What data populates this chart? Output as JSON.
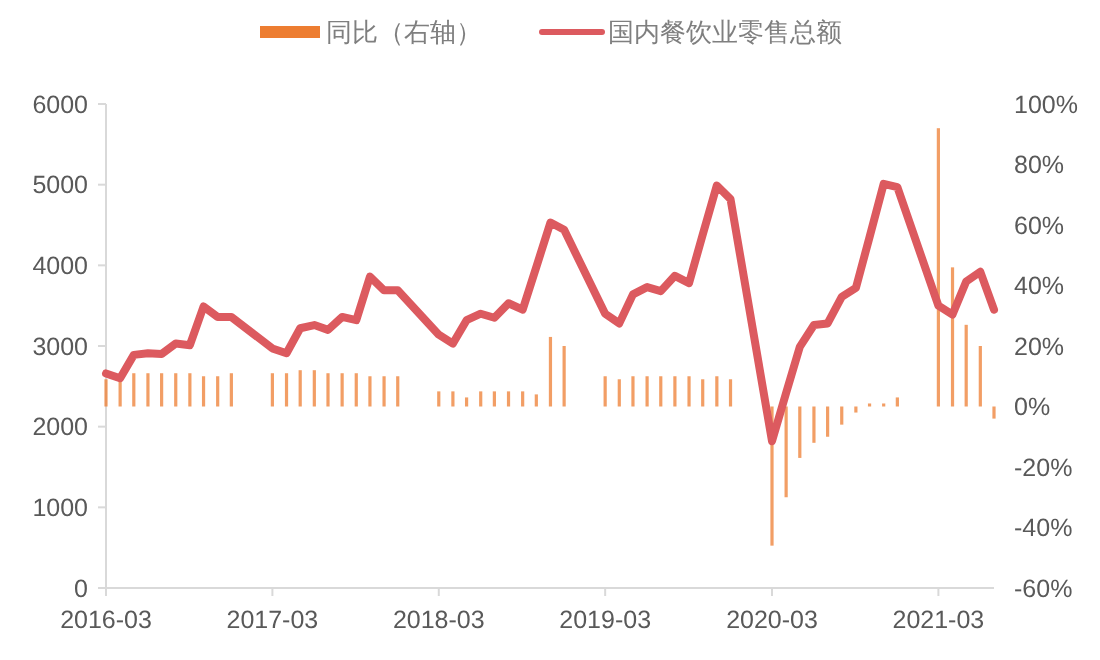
{
  "chart_data": {
    "type": "bar",
    "x": [
      "2016-03",
      "2016-04",
      "2016-05",
      "2016-06",
      "2016-07",
      "2016-08",
      "2016-09",
      "2016-10",
      "2016-11",
      "2016-12",
      "2017-03",
      "2017-04",
      "2017-05",
      "2017-06",
      "2017-07",
      "2017-08",
      "2017-09",
      "2017-10",
      "2017-11",
      "2017-12",
      "2018-03",
      "2018-04",
      "2018-05",
      "2018-06",
      "2018-07",
      "2018-08",
      "2018-09",
      "2018-10",
      "2018-11",
      "2018-12",
      "2019-03",
      "2019-04",
      "2019-05",
      "2019-06",
      "2019-07",
      "2019-08",
      "2019-09",
      "2019-10",
      "2019-11",
      "2019-12",
      "2020-03",
      "2020-04",
      "2020-05",
      "2020-06",
      "2020-07",
      "2020-08",
      "2020-09",
      "2020-10",
      "2020-11",
      "2020-12",
      "2021-03",
      "2021-04",
      "2021-05",
      "2021-06",
      "2021-07"
    ],
    "series": [
      {
        "name": "同比（右轴）",
        "axis": "y2",
        "color": "#ed7d31",
        "values": [
          9,
          11,
          11,
          11,
          11,
          11,
          11,
          10,
          10,
          11,
          11,
          11,
          12,
          12,
          11,
          11,
          11,
          10,
          10,
          10,
          5,
          5,
          3,
          5,
          5,
          5,
          5,
          4,
          23,
          20,
          10,
          9,
          10,
          10,
          10,
          10,
          10,
          9,
          10,
          9,
          -46,
          -30,
          -17,
          -12,
          -10,
          -6,
          -2,
          1,
          1,
          3,
          92,
          46,
          27,
          20,
          -4
        ]
      },
      {
        "name": "国内餐饮业零售总额",
        "type": "line",
        "color": "#dc5a5f",
        "values": [
          2660,
          2600,
          2890,
          2910,
          2900,
          3030,
          3010,
          3490,
          3360,
          3360,
          2970,
          2910,
          3220,
          3260,
          3200,
          3360,
          3320,
          3860,
          3690,
          3690,
          3140,
          3030,
          3320,
          3400,
          3350,
          3530,
          3450,
          3980,
          4530,
          4440,
          3400,
          3280,
          3640,
          3730,
          3680,
          3870,
          3780,
          4380,
          4990,
          4820,
          1820,
          2420,
          2990,
          3260,
          3280,
          3610,
          3720,
          4350,
          5010,
          4970,
          3500,
          3390,
          3800,
          3920,
          3450
        ]
      }
    ],
    "xlim": [
      "2016-03",
      "2021-07"
    ],
    "xticks": [
      "2016-03",
      "2017-03",
      "2018-03",
      "2019-03",
      "2020-03",
      "2021-03"
    ],
    "ylim": [
      0,
      6000
    ],
    "yticks": [
      0,
      1000,
      2000,
      3000,
      4000,
      5000,
      6000
    ],
    "y2lim": [
      -60,
      100
    ],
    "y2ticks": [
      {
        "value": -60,
        "label": "-60%"
      },
      {
        "value": -40,
        "label": "-40%"
      },
      {
        "value": -20,
        "label": "-20%"
      },
      {
        "value": 0,
        "label": "0%"
      },
      {
        "value": 20,
        "label": "20%"
      },
      {
        "value": 40,
        "label": "40%"
      },
      {
        "value": 60,
        "label": "60%"
      },
      {
        "value": 80,
        "label": "80%"
      },
      {
        "value": 100,
        "label": "100%"
      }
    ],
    "legend": "top",
    "grid": false
  }
}
